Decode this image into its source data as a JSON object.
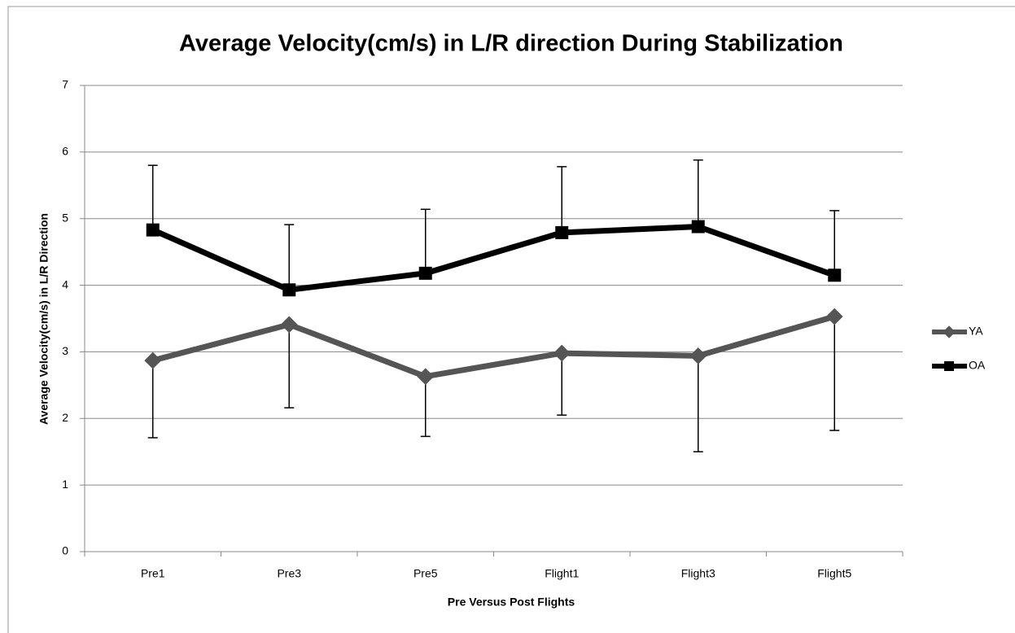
{
  "chart_data": {
    "type": "line",
    "title": "Average Velocity(cm/s) in L/R direction During Stabilization",
    "x_label": "Pre Versus Post Flights",
    "y_label": "Average Velocity(cm/s)  in L/R Direction",
    "categories": [
      "Pre1",
      "Pre3",
      "Pre5",
      "Flight1",
      "Flight3",
      "Flight5"
    ],
    "series": [
      {
        "name": "YA",
        "color": "#555555",
        "marker": "diamond",
        "error_bars": "minus",
        "values": [
          2.87,
          3.41,
          2.63,
          2.98,
          2.94,
          3.53
        ],
        "errors": [
          1.16,
          1.25,
          0.9,
          0.93,
          1.44,
          1.71
        ]
      },
      {
        "name": "OA",
        "color": "#000000",
        "marker": "square",
        "error_bars": "plus",
        "values": [
          4.83,
          3.93,
          4.18,
          4.79,
          4.88,
          4.15
        ],
        "errors": [
          0.97,
          0.98,
          0.96,
          0.99,
          1.0,
          0.97
        ]
      }
    ],
    "ylim": [
      0,
      7
    ],
    "yticks": [
      0,
      1,
      2,
      3,
      4,
      5,
      6,
      7
    ],
    "grid": true,
    "legend": "right"
  }
}
